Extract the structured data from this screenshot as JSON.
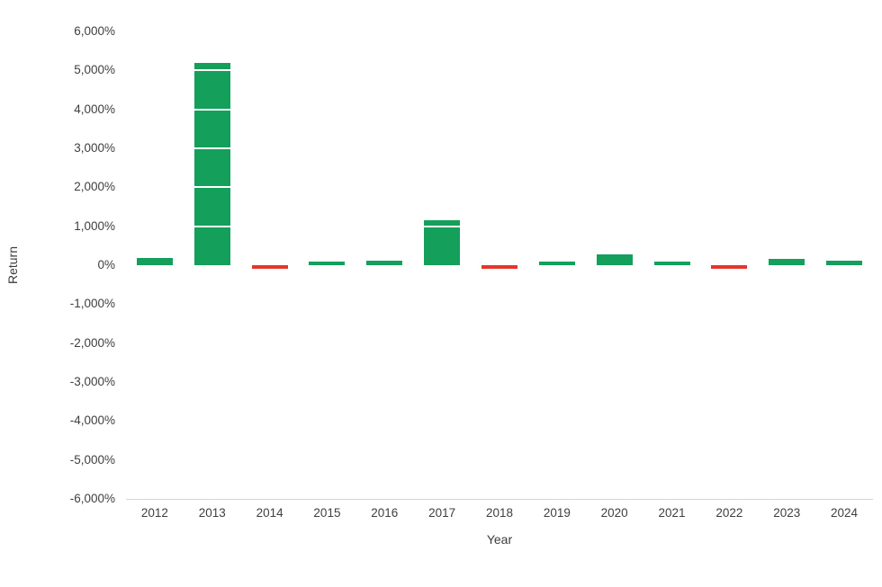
{
  "chart_data": {
    "type": "bar",
    "categories": [
      "2012",
      "2013",
      "2014",
      "2015",
      "2016",
      "2017",
      "2018",
      "2019",
      "2020",
      "2021",
      "2022",
      "2023",
      "2024"
    ],
    "values": [
      186,
      5200,
      -58,
      35,
      124,
      1150,
      -73,
      92,
      273,
      60,
      -64,
      154,
      121
    ],
    "title": "",
    "xlabel": "Year",
    "ylabel": "Return",
    "ylim": [
      -6000,
      6000
    ],
    "ytick_step": 1000,
    "ytick_suffix": "%",
    "grid": "white-overlay-lines",
    "legend": "none",
    "colors": {
      "positive": "#14a05b",
      "negative": "#e5352c",
      "gridline": "#ffffff",
      "axis_line": "#d6d6d6",
      "tick_text": "#3f3f3f"
    }
  }
}
